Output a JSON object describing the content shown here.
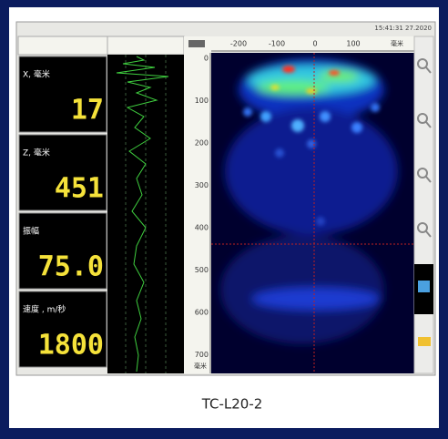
{
  "status_bar": {
    "time": "15:41:31 27.2020"
  },
  "readouts": [
    {
      "label": "X, 毫米",
      "value": "17"
    },
    {
      "label": "Z, 毫米",
      "value": "451"
    },
    {
      "label": "振幅",
      "value": "75.0"
    },
    {
      "label": "速度 , m/秒",
      "value": "1800"
    }
  ],
  "scan": {
    "x_ticks": [
      "-200",
      "-100",
      "0",
      "100"
    ],
    "x_unit": "毫米",
    "y_ticks": [
      "0",
      "100",
      "200",
      "300",
      "400",
      "500",
      "600",
      "700"
    ],
    "y_unit": "毫米"
  },
  "caption": "TC-L20-2"
}
